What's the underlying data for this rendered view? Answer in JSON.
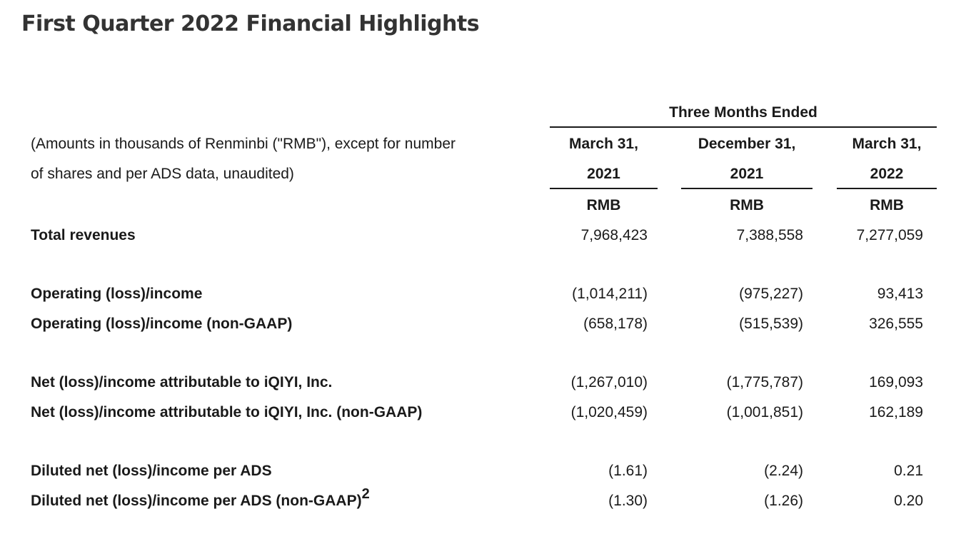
{
  "page": {
    "title": "First Quarter 2022 Financial Highlights"
  },
  "table": {
    "group_header": "Three Months Ended",
    "description_line1": "(Amounts in thousands of Renminbi (\"RMB\"), except for number",
    "description_line2": "of shares and per ADS data, unaudited)",
    "columns": [
      {
        "line1": "March 31,",
        "line2": "2021",
        "currency": "RMB"
      },
      {
        "line1": "December 31,",
        "line2": "2021",
        "currency": "RMB"
      },
      {
        "line1": "March 31,",
        "line2": "2022",
        "currency": "RMB"
      }
    ],
    "rows": [
      {
        "label": "Total revenues",
        "values": [
          "7,968,423",
          "7,388,558",
          "7,277,059"
        ]
      },
      {
        "label": "Operating (loss)/income",
        "values": [
          "(1,014,211)",
          "(975,227)",
          "93,413"
        ]
      },
      {
        "label": "Operating (loss)/income (non-GAAP)",
        "values": [
          "(658,178)",
          "(515,539)",
          "326,555"
        ]
      },
      {
        "label": "Net (loss)/income attributable to iQIYI, Inc.",
        "values": [
          "(1,267,010)",
          "(1,775,787)",
          "169,093"
        ]
      },
      {
        "label": "Net (loss)/income attributable to iQIYI, Inc. (non-GAAP)",
        "values": [
          "(1,020,459)",
          "(1,001,851)",
          "162,189"
        ]
      },
      {
        "label": "Diluted net (loss)/income per ADS",
        "values": [
          "(1.61)",
          "(2.24)",
          "0.21"
        ]
      },
      {
        "label": "Diluted net (loss)/income per ADS (non-GAAP)",
        "footnote": "2",
        "values": [
          "(1.30)",
          "(1.26)",
          "0.20"
        ]
      }
    ]
  }
}
